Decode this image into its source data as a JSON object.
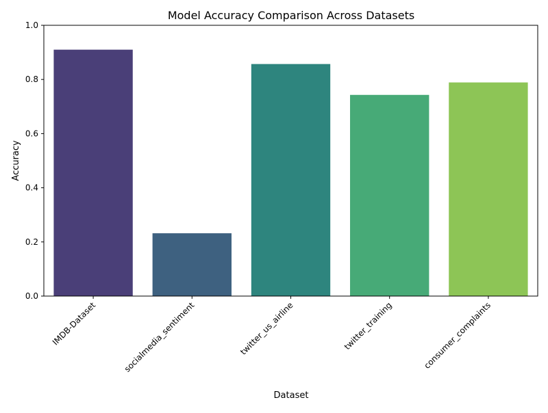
{
  "chart_data": {
    "type": "bar",
    "title": "Model Accuracy Comparison Across Datasets",
    "xlabel": "Dataset",
    "ylabel": "Accuracy",
    "categories": [
      "IMDB-Dataset",
      "socialmedia_sentiment",
      "twitter_us_airline",
      "twitter_training",
      "consumer_complaints"
    ],
    "values": [
      0.91,
      0.232,
      0.857,
      0.743,
      0.789
    ],
    "colors": [
      "#4a3f78",
      "#3e6180",
      "#2e857e",
      "#47aa77",
      "#8dc556"
    ],
    "ylim": [
      0,
      1.0
    ],
    "yticks": [
      "0.0",
      "0.2",
      "0.4",
      "0.6",
      "0.8",
      "1.0"
    ],
    "xtick_rotation": 45,
    "grid": false,
    "legend": "none"
  }
}
